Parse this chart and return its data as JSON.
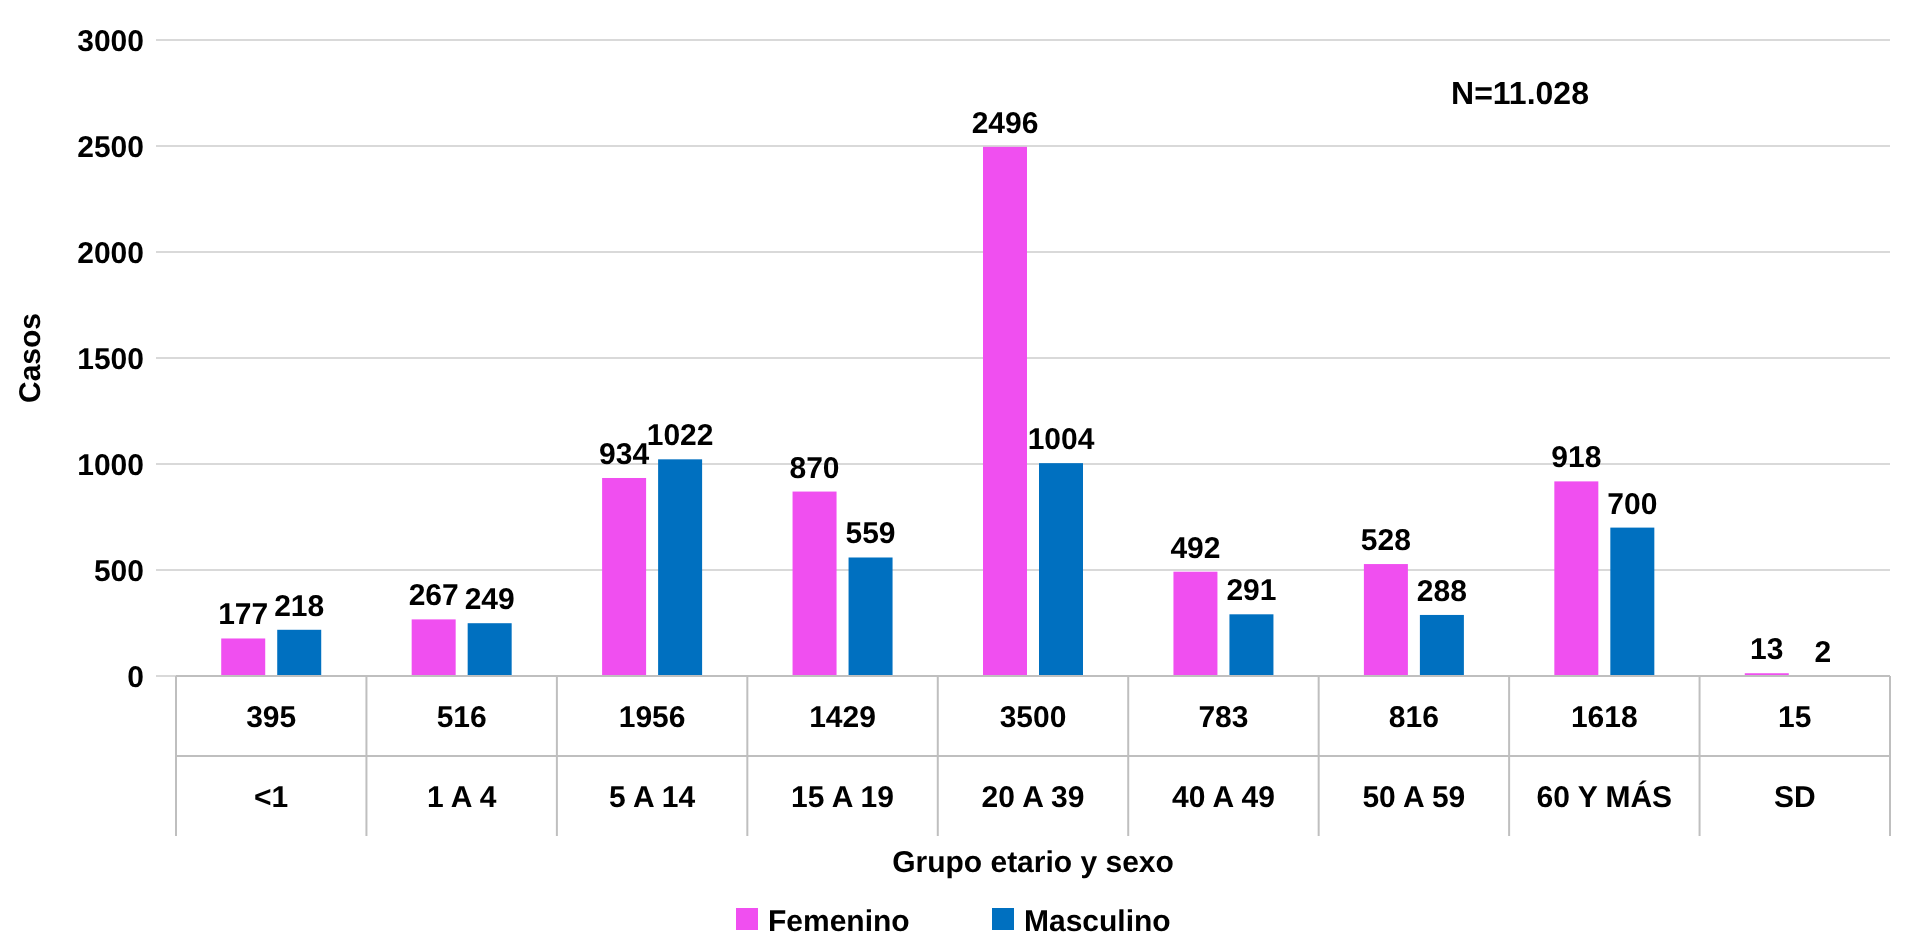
{
  "chart_data": {
    "type": "bar",
    "xlabel": "Grupo etario y sexo",
    "ylabel": "Casos",
    "categories": [
      "<1",
      "1 A 4",
      "5 A 14",
      "15 A 19",
      "20 A 39",
      "40 A 49",
      "50 A 59",
      "60 Y MÁS",
      "SD"
    ],
    "series": [
      {
        "name": "Femenino",
        "color": "#f04ff0",
        "values": [
          177,
          267,
          934,
          870,
          2496,
          492,
          528,
          918,
          13
        ]
      },
      {
        "name": "Masculino",
        "color": "#0070c0",
        "values": [
          218,
          249,
          1022,
          559,
          1004,
          291,
          288,
          700,
          2
        ]
      }
    ],
    "totals": [
      "395",
      "516",
      "1956",
      "1429",
      "3500",
      "783",
      "816",
      "1618",
      "15"
    ],
    "ylim": [
      0,
      3000
    ],
    "yticks": [
      0,
      500,
      1000,
      1500,
      2000,
      2500,
      3000
    ],
    "grid": "y",
    "legend": "bottom",
    "data_labels": true,
    "annotations": [
      "N=11.028"
    ]
  }
}
